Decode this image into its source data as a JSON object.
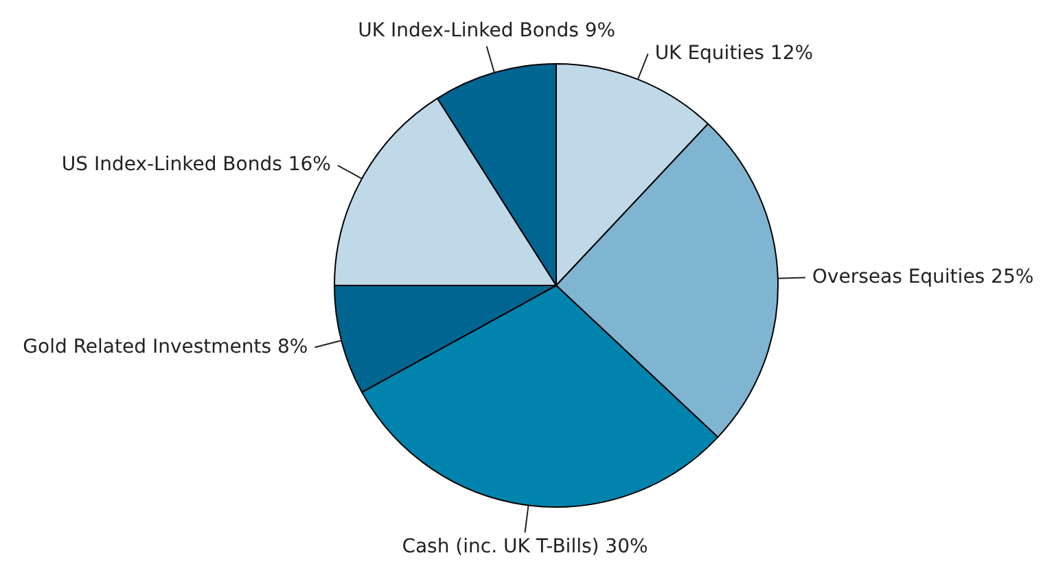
{
  "chart_data": {
    "type": "pie",
    "categories": [
      "UK Equities",
      "Overseas Equities",
      "Cash (inc. UK T-Bills)",
      "Gold Related Investments",
      "US Index-Linked Bonds",
      "UK Index-Linked Bonds"
    ],
    "values": [
      12,
      25,
      30,
      8,
      16,
      9
    ],
    "value_labels": [
      "12%",
      "25%",
      "30%",
      "8%",
      "16%",
      "9%"
    ],
    "colors": [
      "#c0d9e8",
      "#7fb5d1",
      "#0083ad",
      "#006591",
      "#c0d9e8",
      "#006591"
    ],
    "legend": false
  }
}
